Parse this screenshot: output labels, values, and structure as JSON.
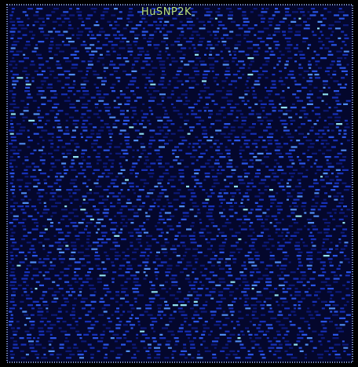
{
  "image": {
    "label": "HuSNP2K"
  }
}
